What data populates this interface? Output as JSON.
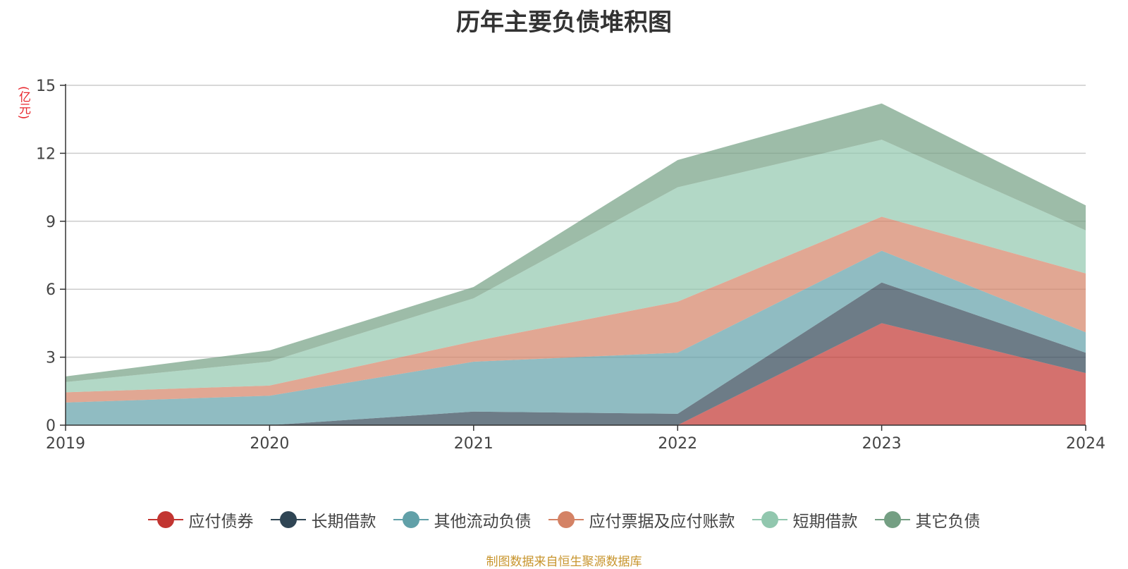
{
  "chart_data": {
    "type": "area",
    "stacked": true,
    "title": "历年主要负债堆积图",
    "unit_label": "(亿元)",
    "x": [
      "2019",
      "2020",
      "2021",
      "2022",
      "2023",
      "2024"
    ],
    "ylim": [
      0,
      15
    ],
    "yticks": [
      "0",
      "3",
      "6",
      "9",
      "12",
      "15"
    ],
    "grid": true,
    "legend_position": "bottom",
    "series": [
      {
        "name": "应付债券",
        "color": "#c23531",
        "values": [
          0,
          0,
          0,
          0,
          4.5,
          2.3
        ]
      },
      {
        "name": "长期借款",
        "color": "#2f4554",
        "values": [
          0,
          0,
          0.6,
          0.5,
          1.8,
          0.9
        ]
      },
      {
        "name": "其他流动负债",
        "color": "#61a0a8",
        "values": [
          1.0,
          1.3,
          2.2,
          2.7,
          1.4,
          0.9
        ]
      },
      {
        "name": "应付票据及应付账款",
        "color": "#d48265",
        "values": [
          0.45,
          0.45,
          0.9,
          2.25,
          1.5,
          2.6
        ]
      },
      {
        "name": "短期借款",
        "color": "#91c7ae",
        "values": [
          0.45,
          1.05,
          1.9,
          5.05,
          3.4,
          1.9
        ]
      },
      {
        "name": "其它负债",
        "color": "#749f83",
        "values": [
          0.25,
          0.5,
          0.5,
          1.2,
          1.6,
          1.1
        ]
      }
    ]
  },
  "source": "制图数据来自恒生聚源数据库"
}
